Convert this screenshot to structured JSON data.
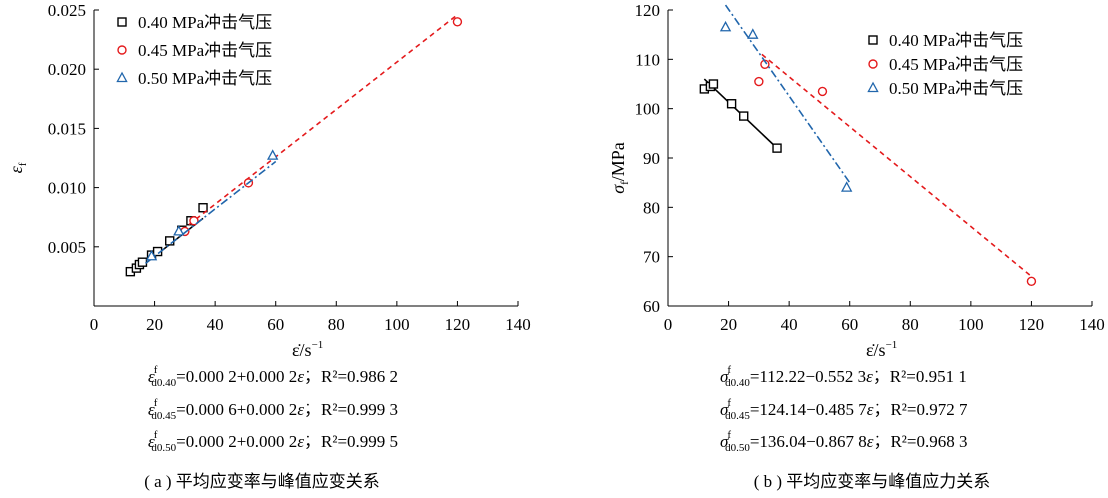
{
  "chart_data": [
    {
      "type": "scatter",
      "xlabel": "ε̇/s",
      "xlabel_sup": "−1",
      "ylabel": "ε",
      "ylabel_sub": "f",
      "xlim": [
        0,
        140
      ],
      "ylim": [
        0,
        0.025
      ],
      "xticks": [
        0,
        20,
        40,
        60,
        80,
        100,
        120,
        140
      ],
      "xtick_labels": [
        "0",
        "20",
        "40",
        "60",
        "80",
        "100",
        "120",
        "140"
      ],
      "yticks": [
        0.005,
        0.01,
        0.015,
        0.02,
        0.025
      ],
      "ytick_labels": [
        "0.005",
        "0.010",
        "0.015",
        "0.020",
        "0.025"
      ],
      "legend_position": "top-left",
      "series": [
        {
          "name": "0.40 MPa冲击气压",
          "color": "#000000",
          "marker": "square",
          "line": "solid",
          "x": [
            12,
            14,
            15,
            16,
            19,
            21,
            25,
            29,
            32,
            36
          ],
          "y": [
            0.0029,
            0.0032,
            0.0035,
            0.0037,
            0.0043,
            0.0046,
            0.0055,
            0.0064,
            0.0072,
            0.0083
          ],
          "fit": [
            [
              12,
              0.0026
            ],
            [
              36,
              0.0074
            ]
          ]
        },
        {
          "name": "0.45 MPa冲击气压",
          "color": "#e41a1c",
          "marker": "circle",
          "line": "dashed",
          "x": [
            30,
            33,
            51,
            120
          ],
          "y": [
            0.0063,
            0.0072,
            0.0104,
            0.024
          ],
          "fit": [
            [
              29,
              0.0064
            ],
            [
              120,
              0.0246
            ]
          ]
        },
        {
          "name": "0.50 MPa冲击气压",
          "color": "#2166ac",
          "marker": "triangle",
          "line": "dashdot",
          "x": [
            19,
            28,
            59
          ],
          "y": [
            0.0042,
            0.0063,
            0.0127
          ],
          "fit": [
            [
              17,
              0.0036
            ],
            [
              60,
              0.0122
            ]
          ]
        }
      ],
      "equations": [
        {
          "lhs": "ε",
          "sup": "f",
          "sub": "d0.40",
          "rhs": "=0.000 2+0.000 2",
          "rhs_var": "ε̇",
          "r2_text": "，R²=0.986 2"
        },
        {
          "lhs": "ε",
          "sup": "f",
          "sub": "d0.45",
          "rhs": "=0.000 6+0.000 2",
          "rhs_var": "ε̇",
          "r2_text": "，R²=0.999 3"
        },
        {
          "lhs": "ε",
          "sup": "f",
          "sub": "d0.50",
          "rhs": "=0.000 2+0.000 2",
          "rhs_var": "ε̇",
          "r2_text": "，R²=0.999 5"
        }
      ],
      "caption": "( a ) 平均应变率与峰值应变关系"
    },
    {
      "type": "scatter",
      "xlabel": "ε̇/s",
      "xlabel_sup": "−1",
      "ylabel": "σ",
      "ylabel_sub": "f",
      "ylabel_unit": "/MPa",
      "xlim": [
        0,
        140
      ],
      "ylim": [
        60,
        120
      ],
      "xticks": [
        0,
        20,
        40,
        60,
        80,
        100,
        120,
        140
      ],
      "xtick_labels": [
        "0",
        "20",
        "40",
        "60",
        "80",
        "100",
        "120",
        "140"
      ],
      "yticks": [
        60,
        70,
        80,
        90,
        100,
        110,
        120
      ],
      "ytick_labels": [
        "60",
        "70",
        "80",
        "90",
        "100",
        "110",
        "120"
      ],
      "legend_position": "top-right",
      "series": [
        {
          "name": "0.40 MPa冲击气压",
          "color": "#000000",
          "marker": "square",
          "line": "solid",
          "x": [
            12,
            14,
            15,
            21,
            25,
            36
          ],
          "y": [
            104,
            104.5,
            105,
            101,
            98.5,
            92
          ],
          "fit": [
            [
              12,
              106
            ],
            [
              36,
              92
            ]
          ]
        },
        {
          "name": "0.45 MPa冲击气压",
          "color": "#e41a1c",
          "marker": "circle",
          "line": "dashed",
          "x": [
            30,
            32,
            51,
            120
          ],
          "y": [
            105.5,
            109,
            103.5,
            65
          ],
          "fit": [
            [
              31,
              111
            ],
            [
              120,
              66
            ]
          ]
        },
        {
          "name": "0.50 MPa冲击气压",
          "color": "#2166ac",
          "marker": "triangle",
          "line": "dashdot",
          "x": [
            19,
            28,
            59
          ],
          "y": [
            116.5,
            115,
            84
          ],
          "fit": [
            [
              19,
              121
            ],
            [
              60,
              85
            ]
          ]
        }
      ],
      "equations": [
        {
          "lhs": "σ",
          "sup": "f",
          "sub": "d0.40",
          "rhs": "=112.22−0.552 3",
          "rhs_var": "ε̇",
          "r2_text": "，R²=0.951 1"
        },
        {
          "lhs": "σ",
          "sup": "f",
          "sub": "d0.45",
          "rhs": "=124.14−0.485 7",
          "rhs_var": "ε̇",
          "r2_text": "，R²=0.972 7"
        },
        {
          "lhs": "σ",
          "sup": "f",
          "sub": "d0.50",
          "rhs": "=136.04−0.867 8",
          "rhs_var": "ε̇",
          "r2_text": "，R²=0.968 3"
        }
      ],
      "caption": "( b ) 平均应变率与峰值应力关系"
    }
  ]
}
